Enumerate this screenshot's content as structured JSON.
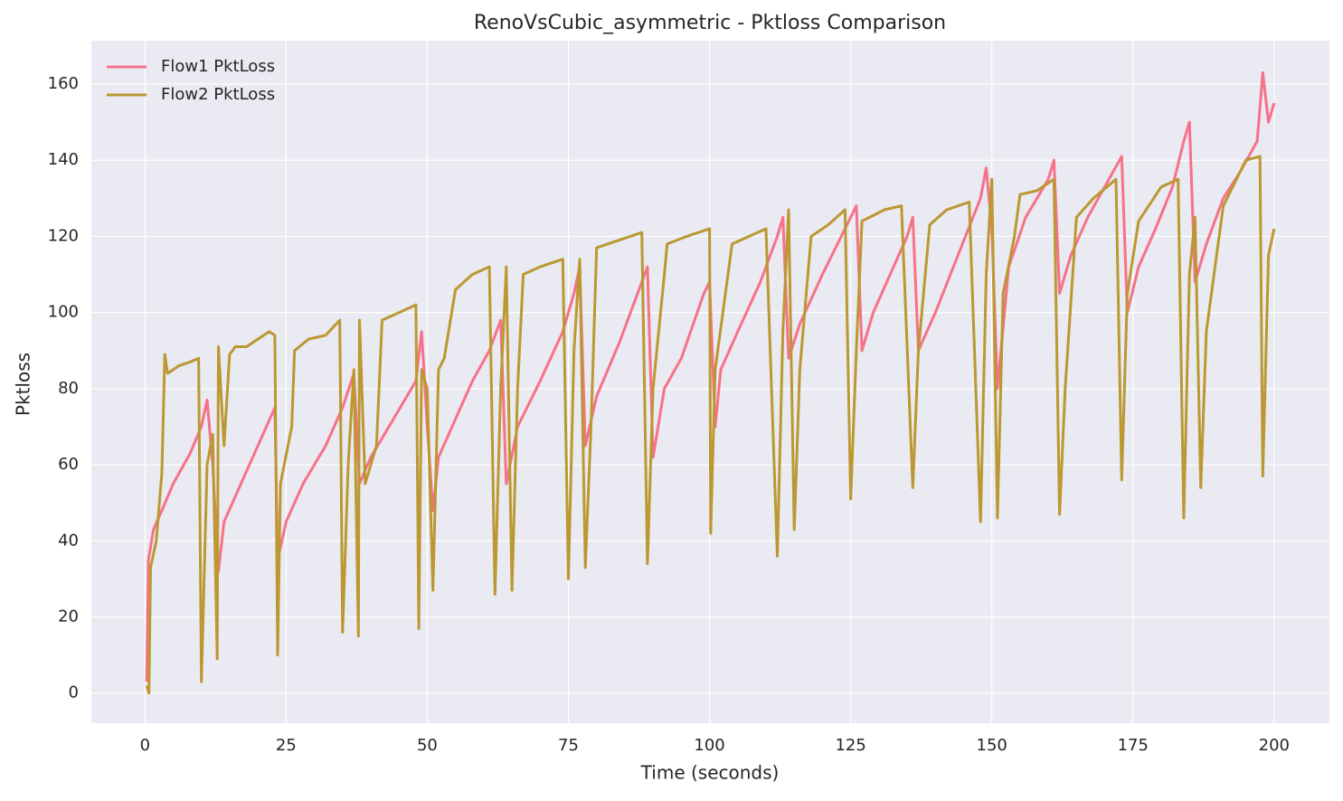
{
  "chart_data": {
    "type": "line",
    "title": "RenoVsCubic_asymmetric - Pktloss Comparison",
    "x_label": "Time (seconds)",
    "y_label": "Pktloss",
    "xlim": [
      -9.5,
      209.8
    ],
    "ylim": [
      -7.9,
      171.4
    ],
    "xticks": [
      0,
      25,
      50,
      75,
      100,
      125,
      150,
      175,
      200
    ],
    "yticks": [
      0,
      20,
      40,
      60,
      80,
      100,
      120,
      140,
      160
    ],
    "grid": true,
    "legend": "upper left",
    "series": [
      {
        "name": "Flow1 PktLoss",
        "color": "#f77189",
        "x": [
          0.3,
          0.6,
          1.5,
          3,
          5,
          8,
          10,
          11,
          12,
          13,
          14,
          17,
          20,
          23,
          23.5,
          25,
          28,
          32,
          35,
          37,
          38,
          40,
          44,
          48,
          49,
          50,
          51,
          52,
          55,
          58,
          61,
          63,
          64,
          66,
          70,
          74,
          76,
          77,
          78,
          80,
          84,
          88,
          89,
          90,
          92,
          95,
          99,
          100,
          101,
          102,
          105,
          109,
          112,
          113,
          114,
          116,
          120,
          124,
          126,
          127,
          129,
          132,
          135,
          136,
          137,
          140,
          144,
          148,
          149,
          150,
          151,
          153,
          156,
          160,
          161,
          162,
          164,
          167,
          170,
          173,
          174,
          176,
          179,
          182,
          184,
          185,
          186,
          188,
          191,
          194,
          197,
          198,
          199,
          200
        ],
        "values": [
          3,
          35,
          43,
          48,
          55,
          63,
          70,
          77,
          60,
          32,
          45,
          55,
          65,
          75,
          35,
          45,
          55,
          65,
          75,
          84,
          55,
          62,
          72,
          82,
          95,
          70,
          48,
          62,
          72,
          82,
          90,
          98,
          55,
          70,
          82,
          95,
          105,
          112,
          65,
          78,
          92,
          108,
          112,
          62,
          80,
          88,
          105,
          108,
          70,
          85,
          95,
          108,
          120,
          125,
          88,
          97,
          110,
          122,
          128,
          90,
          100,
          110,
          120,
          125,
          90,
          100,
          115,
          130,
          138,
          122,
          80,
          112,
          125,
          135,
          140,
          105,
          115,
          125,
          133,
          141,
          100,
          112,
          122,
          133,
          145,
          150,
          108,
          118,
          130,
          137,
          145,
          163,
          150,
          155
        ]
      },
      {
        "name": "Flow2 PktLoss",
        "color": "#bb9832",
        "x": [
          0.3,
          0.7,
          1,
          2,
          3,
          3.5,
          4,
          6,
          8,
          9.5,
          10,
          11,
          12,
          12.8,
          13,
          14,
          15,
          16,
          18,
          20,
          22,
          23,
          23.5,
          24,
          26,
          26.5,
          29,
          32,
          34.5,
          35,
          36,
          37,
          37.8,
          38,
          39,
          41,
          42,
          45,
          48,
          48.5,
          49,
          50,
          51,
          52,
          53,
          55,
          58,
          61,
          62,
          63,
          64,
          65,
          66,
          67,
          70,
          74,
          75,
          76,
          77,
          78,
          79,
          80,
          84,
          88,
          89,
          90,
          92,
          92.5,
          96,
          100,
          100.2,
          101,
          104,
          107,
          110,
          112,
          113,
          114,
          115,
          116,
          118,
          121,
          124,
          125,
          126,
          127,
          131,
          134,
          136,
          137,
          139,
          142,
          146,
          148,
          149,
          150,
          151,
          152,
          154,
          155,
          158,
          161,
          162,
          163,
          165,
          168,
          172,
          173,
          174,
          176,
          180,
          183,
          184,
          185,
          186,
          187,
          188,
          191,
          195,
          197.5,
          198,
          199,
          200
        ],
        "values": [
          2,
          0,
          33,
          40,
          58,
          89,
          84,
          86,
          87,
          88,
          3,
          60,
          68,
          9,
          91,
          65,
          89,
          91,
          91,
          93,
          95,
          94,
          10,
          55,
          70,
          90,
          93,
          94,
          98,
          16,
          60,
          85,
          15,
          98,
          55,
          65,
          98,
          100,
          102,
          17,
          85,
          80,
          27,
          85,
          88,
          106,
          110,
          112,
          26,
          80,
          112,
          27,
          80,
          110,
          112,
          114,
          30,
          90,
          114,
          33,
          70,
          117,
          119,
          121,
          34,
          80,
          110,
          118,
          120,
          122,
          42,
          85,
          118,
          120,
          122,
          36,
          95,
          127,
          43,
          85,
          120,
          123,
          127,
          51,
          90,
          124,
          127,
          128,
          54,
          90,
          123,
          127,
          129,
          45,
          110,
          135,
          46,
          105,
          120,
          131,
          132,
          135,
          47,
          80,
          125,
          130,
          135,
          56,
          105,
          124,
          133,
          135,
          46,
          110,
          125,
          54,
          95,
          128,
          140,
          141,
          57,
          115,
          122
        ]
      }
    ]
  }
}
